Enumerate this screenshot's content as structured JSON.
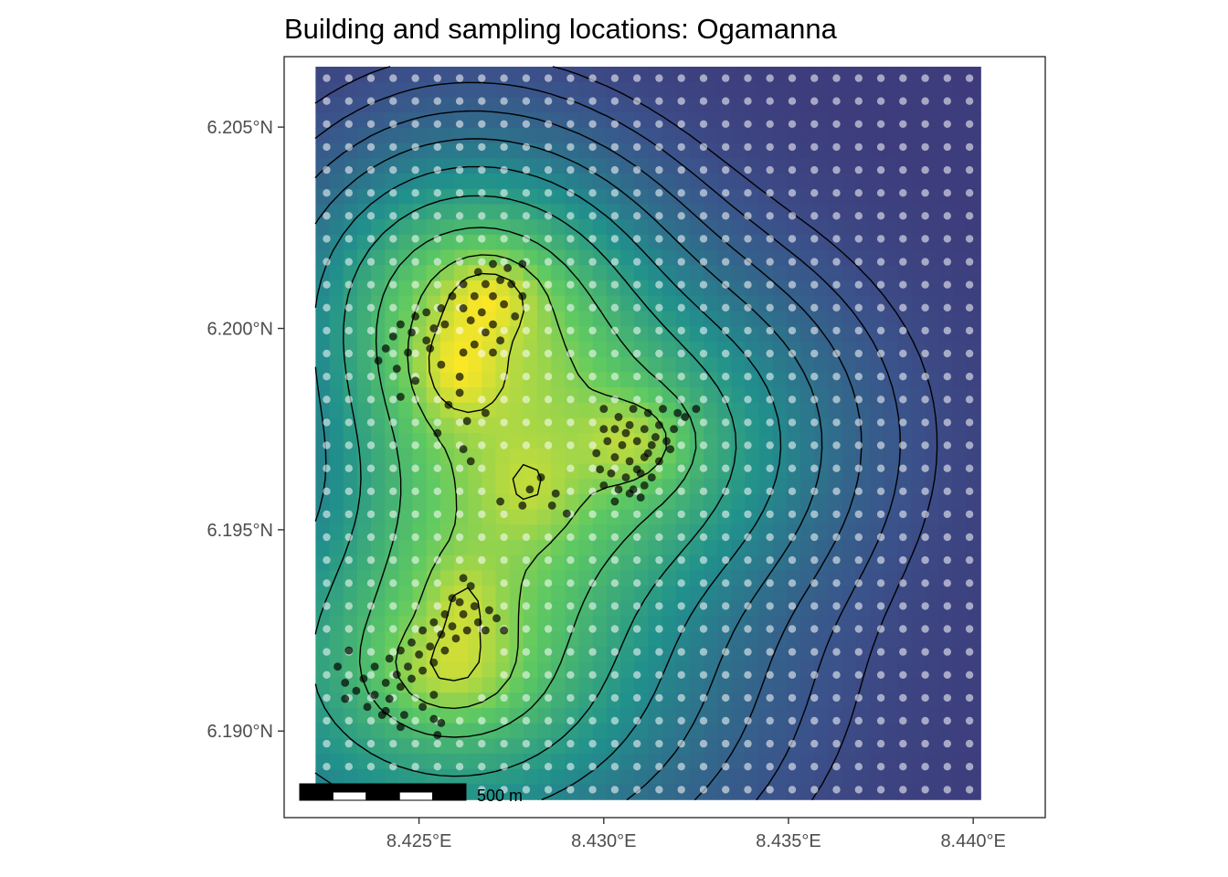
{
  "chart_data": {
    "type": "heatmap",
    "title": "Building and sampling locations: Ogamanna",
    "xlabel": "",
    "ylabel": "",
    "x_ticks": [
      {
        "value": 8.425,
        "label": "8.425°E"
      },
      {
        "value": 8.43,
        "label": "8.430°E"
      },
      {
        "value": 8.435,
        "label": "8.435°E"
      },
      {
        "value": 8.44,
        "label": "8.440°E"
      }
    ],
    "y_ticks": [
      {
        "value": 6.19,
        "label": "6.190°N"
      },
      {
        "value": 6.195,
        "label": "6.195°N"
      },
      {
        "value": 6.2,
        "label": "6.200°N"
      },
      {
        "value": 6.205,
        "label": "6.205°N"
      }
    ],
    "xlim": [
      8.42135,
      8.44195
    ],
    "ylim": [
      6.18785,
      6.20675
    ],
    "raster_extent": {
      "xmin": 8.4222,
      "xmax": 8.4402,
      "ymin": 6.1883,
      "ymax": 6.2065
    },
    "colormap": [
      "#440154",
      "#3b528b",
      "#21918c",
      "#5ec962",
      "#fde725"
    ],
    "color_scale": {
      "min": 0.0,
      "max": 1.0
    },
    "grid": false,
    "legend": "none",
    "scale_bar": {
      "label": "500 m",
      "segments": 5,
      "length_deg": 0.0045
    },
    "building_clusters": [
      {
        "lon": 8.4269,
        "lat": 6.2008,
        "sx": 0.0008,
        "sy": 0.0006,
        "weight": 1.0
      },
      {
        "lon": 8.426,
        "lat": 6.199,
        "sx": 0.0007,
        "sy": 0.0008,
        "weight": 0.95
      },
      {
        "lon": 8.4308,
        "lat": 6.1972,
        "sx": 0.0009,
        "sy": 0.0007,
        "weight": 0.95
      },
      {
        "lon": 8.4258,
        "lat": 6.1915,
        "sx": 0.0012,
        "sy": 0.0008,
        "weight": 0.95
      },
      {
        "lon": 8.4262,
        "lat": 6.1932,
        "sx": 0.0006,
        "sy": 0.0007,
        "weight": 0.6
      },
      {
        "lon": 8.428,
        "lat": 6.196,
        "sx": 0.0008,
        "sy": 0.0008,
        "weight": 0.55
      }
    ],
    "sampling_grid_spacing": {
      "dlon": 0.0006,
      "dlat": 0.00057
    },
    "contour_levels": [
      0.06,
      0.1,
      0.16,
      0.24,
      0.34,
      0.46,
      0.6,
      0.75,
      0.88
    ],
    "buildings": [
      [
        8.427,
        6.2016
      ],
      [
        8.4274,
        6.2015
      ],
      [
        8.4278,
        6.2016
      ],
      [
        8.4266,
        6.2014
      ],
      [
        8.4272,
        6.2012
      ],
      [
        8.4268,
        6.2011
      ],
      [
        8.4275,
        6.2011
      ],
      [
        8.4262,
        6.2011
      ],
      [
        8.4265,
        6.2008
      ],
      [
        8.427,
        6.2008
      ],
      [
        8.4278,
        6.2008
      ],
      [
        8.4259,
        6.2008
      ],
      [
        8.4262,
        6.2005
      ],
      [
        8.4267,
        6.2004
      ],
      [
        8.4273,
        6.2006
      ],
      [
        8.4256,
        6.2005
      ],
      [
        8.4252,
        6.2004
      ],
      [
        8.4249,
        6.2003
      ],
      [
        8.4257,
        6.2001
      ],
      [
        8.4264,
        6.2002
      ],
      [
        8.427,
        6.2001
      ],
      [
        8.4276,
        6.2003
      ],
      [
        8.4245,
        6.2001
      ],
      [
        8.4254,
        6.2
      ],
      [
        8.4268,
        6.1999
      ],
      [
        8.4272,
        6.1997
      ],
      [
        8.4248,
        6.1999
      ],
      [
        8.4252,
        6.1997
      ],
      [
        8.4243,
        6.1998
      ],
      [
        8.4265,
        6.1996
      ],
      [
        8.4241,
        6.1995
      ],
      [
        8.4247,
        6.1994
      ],
      [
        8.4253,
        6.1995
      ],
      [
        8.427,
        6.1994
      ],
      [
        8.4262,
        6.1994
      ],
      [
        8.4239,
        6.1992
      ],
      [
        8.4256,
        6.1991
      ],
      [
        8.4244,
        6.199
      ],
      [
        8.4261,
        6.1988
      ],
      [
        8.4249,
        6.1987
      ],
      [
        8.4245,
        6.1983
      ],
      [
        8.4261,
        6.1984
      ],
      [
        8.4258,
        6.1981
      ],
      [
        8.4263,
        6.1977
      ],
      [
        8.4268,
        6.1979
      ],
      [
        8.4255,
        6.1974
      ],
      [
        8.4262,
        6.197
      ],
      [
        8.4264,
        6.1967
      ],
      [
        8.4283,
        6.1963
      ],
      [
        8.428,
        6.196
      ],
      [
        8.4287,
        6.1959
      ],
      [
        8.4278,
        6.1956
      ],
      [
        8.4286,
        6.1956
      ],
      [
        8.4272,
        6.1957
      ],
      [
        8.429,
        6.1954
      ],
      [
        8.43,
        6.198
      ],
      [
        8.4304,
        6.1978
      ],
      [
        8.4308,
        6.198
      ],
      [
        8.4312,
        6.1979
      ],
      [
        8.4316,
        6.198
      ],
      [
        8.432,
        6.1979
      ],
      [
        8.4303,
        6.1975
      ],
      [
        8.4307,
        6.1976
      ],
      [
        8.4311,
        6.1975
      ],
      [
        8.4315,
        6.1976
      ],
      [
        8.4319,
        6.1975
      ],
      [
        8.4301,
        6.1972
      ],
      [
        8.4305,
        6.1971
      ],
      [
        8.4309,
        6.1972
      ],
      [
        8.4313,
        6.1971
      ],
      [
        8.4317,
        6.1972
      ],
      [
        8.4303,
        6.1968
      ],
      [
        8.4307,
        6.1967
      ],
      [
        8.4311,
        6.1968
      ],
      [
        8.4315,
        6.1967
      ],
      [
        8.4302,
        6.1964
      ],
      [
        8.4306,
        6.1963
      ],
      [
        8.431,
        6.1964
      ],
      [
        8.4313,
        6.1963
      ],
      [
        8.43,
        6.1961
      ],
      [
        8.4304,
        6.196
      ],
      [
        8.4308,
        6.196
      ],
      [
        8.4311,
        6.1961
      ],
      [
        8.4299,
        6.1965
      ],
      [
        8.4312,
        6.1969
      ],
      [
        8.4318,
        6.197
      ],
      [
        8.4322,
        6.1978
      ],
      [
        8.4325,
        6.198
      ],
      [
        8.4314,
        6.1973
      ],
      [
        8.4306,
        6.1974
      ],
      [
        8.4309,
        6.1965
      ],
      [
        8.4298,
        6.1969
      ],
      [
        8.43,
        6.1975
      ],
      [
        8.4307,
        6.1959
      ],
      [
        8.4303,
        6.1957
      ],
      [
        8.431,
        6.1958
      ],
      [
        8.4262,
        6.1938
      ],
      [
        8.4264,
        6.1936
      ],
      [
        8.4261,
        6.1932
      ],
      [
        8.4265,
        6.1931
      ],
      [
        8.4269,
        6.193
      ],
      [
        8.4257,
        6.1929
      ],
      [
        8.4262,
        6.1929
      ],
      [
        8.4266,
        6.1927
      ],
      [
        8.4271,
        6.1928
      ],
      [
        8.4254,
        6.1927
      ],
      [
        8.4259,
        6.1926
      ],
      [
        8.4263,
        6.1925
      ],
      [
        8.4251,
        6.1925
      ],
      [
        8.4256,
        6.1924
      ],
      [
        8.426,
        6.1923
      ],
      [
        8.4248,
        6.1922
      ],
      [
        8.4253,
        6.1921
      ],
      [
        8.4257,
        6.192
      ],
      [
        8.4245,
        6.192
      ],
      [
        8.425,
        6.1919
      ],
      [
        8.4254,
        6.1917
      ],
      [
        8.4242,
        6.1918
      ],
      [
        8.4247,
        6.1916
      ],
      [
        8.4251,
        6.1915
      ],
      [
        8.4238,
        6.1916
      ],
      [
        8.4244,
        6.1914
      ],
      [
        8.4248,
        6.1913
      ],
      [
        8.4235,
        6.1913
      ],
      [
        8.4241,
        6.1912
      ],
      [
        8.4245,
        6.1911
      ],
      [
        8.4233,
        6.191
      ],
      [
        8.4238,
        6.1909
      ],
      [
        8.4242,
        6.1908
      ],
      [
        8.423,
        6.1912
      ],
      [
        8.4236,
        6.1906
      ],
      [
        8.4241,
        6.1905
      ],
      [
        8.4246,
        6.1904
      ],
      [
        8.4251,
        6.1906
      ],
      [
        8.4254,
        6.1903
      ],
      [
        8.4255,
        6.1899
      ],
      [
        8.4256,
        6.1902
      ],
      [
        8.423,
        6.1908
      ],
      [
        8.424,
        6.1904
      ],
      [
        8.4245,
        6.1901
      ],
      [
        8.4254,
        6.1909
      ],
      [
        8.4268,
        6.1925
      ],
      [
        8.4273,
        6.1925
      ],
      [
        8.4259,
        6.1933
      ],
      [
        8.4231,
        6.192
      ],
      [
        8.4228,
        6.1916
      ]
    ]
  }
}
